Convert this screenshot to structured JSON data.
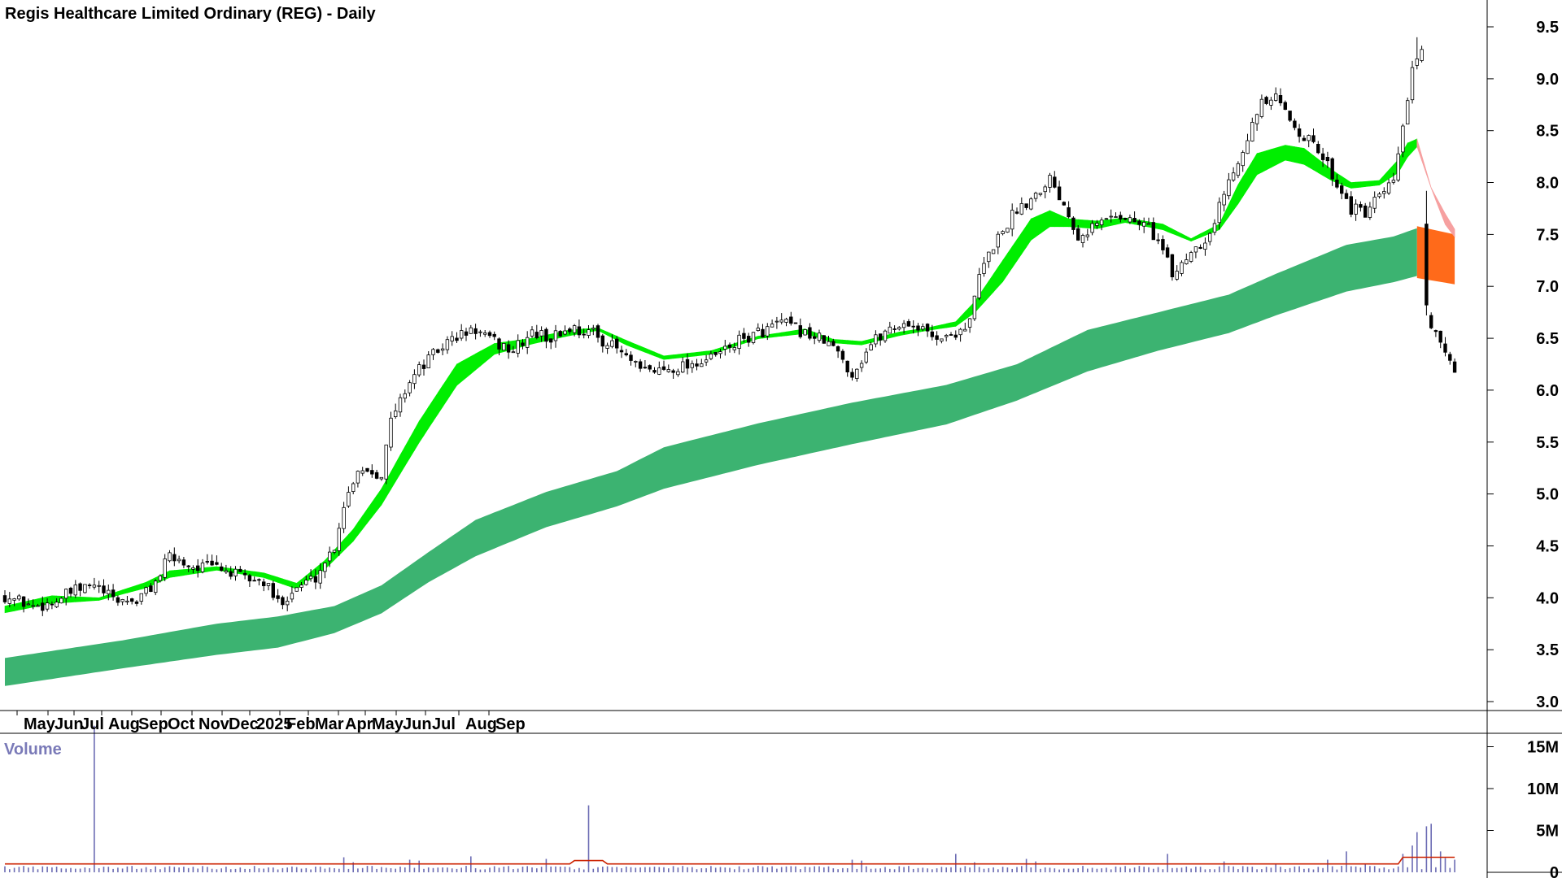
{
  "chart_data": [
    {
      "type": "candlestick",
      "title": "Regis Healthcare Limited Ordinary (REG) - Daily",
      "ylim": [
        2.9,
        9.6
      ],
      "y_ticks": [
        3.0,
        3.5,
        4.0,
        4.5,
        5.0,
        5.5,
        6.0,
        6.5,
        7.0,
        7.5,
        8.0,
        8.5,
        9.0,
        9.5
      ],
      "y_tick_labels": [
        "3.0",
        "3.5",
        "4.0",
        "4.5",
        "5.0",
        "5.5",
        "6.0",
        "6.5",
        "7.0",
        "7.5",
        "8.0",
        "8.5",
        "9.0",
        "9.5"
      ],
      "x_tick_labels": [
        "May",
        "Jun",
        "Jul",
        "Aug",
        "Sep",
        "Oct",
        "Nov",
        "Dec",
        "2025",
        "Feb",
        "Mar",
        "Apr",
        "May",
        "Jun",
        "Jul",
        "Aug",
        "Sep"
      ],
      "grid": false,
      "legend": "none",
      "anchors": [
        [
          0,
          4.02
        ],
        [
          6,
          3.92
        ],
        [
          10,
          3.95
        ],
        [
          14,
          4.05
        ],
        [
          19,
          4.12
        ],
        [
          23,
          3.98
        ],
        [
          28,
          3.97
        ],
        [
          32,
          4.15
        ],
        [
          35,
          4.4
        ],
        [
          40,
          4.3
        ],
        [
          45,
          4.3
        ],
        [
          50,
          4.2
        ],
        [
          55,
          4.15
        ],
        [
          58,
          3.95
        ],
        [
          62,
          4.1
        ],
        [
          66,
          4.2
        ],
        [
          70,
          4.5
        ],
        [
          72,
          4.9
        ],
        [
          75,
          5.25
        ],
        [
          80,
          5.2
        ],
        [
          82,
          5.7
        ],
        [
          86,
          6.1
        ],
        [
          90,
          6.3
        ],
        [
          95,
          6.5
        ],
        [
          100,
          6.58
        ],
        [
          103,
          6.48
        ],
        [
          108,
          6.38
        ],
        [
          112,
          6.55
        ],
        [
          116,
          6.5
        ],
        [
          120,
          6.6
        ],
        [
          125,
          6.55
        ],
        [
          128,
          6.45
        ],
        [
          130,
          6.4
        ],
        [
          135,
          6.18
        ],
        [
          140,
          6.2
        ],
        [
          145,
          6.25
        ],
        [
          150,
          6.3
        ],
        [
          155,
          6.45
        ],
        [
          160,
          6.55
        ],
        [
          165,
          6.65
        ],
        [
          170,
          6.55
        ],
        [
          175,
          6.45
        ],
        [
          178,
          6.3
        ],
        [
          180,
          6.15
        ],
        [
          184,
          6.45
        ],
        [
          188,
          6.6
        ],
        [
          192,
          6.65
        ],
        [
          196,
          6.55
        ],
        [
          200,
          6.5
        ],
        [
          205,
          6.65
        ],
        [
          207,
          7.1
        ],
        [
          210,
          7.4
        ],
        [
          215,
          7.75
        ],
        [
          218,
          7.85
        ],
        [
          222,
          8.05
        ],
        [
          225,
          7.8
        ],
        [
          228,
          7.5
        ],
        [
          232,
          7.6
        ],
        [
          236,
          7.7
        ],
        [
          240,
          7.62
        ],
        [
          243,
          7.58
        ],
        [
          246,
          7.35
        ],
        [
          248,
          7.1
        ],
        [
          252,
          7.35
        ],
        [
          256,
          7.5
        ],
        [
          259,
          7.9
        ],
        [
          263,
          8.35
        ],
        [
          267,
          8.75
        ],
        [
          270,
          8.8
        ],
        [
          274,
          8.55
        ],
        [
          277,
          8.4
        ],
        [
          280,
          8.25
        ],
        [
          283,
          8.0
        ],
        [
          286,
          7.75
        ],
        [
          289,
          7.7
        ],
        [
          292,
          7.85
        ],
        [
          294,
          7.95
        ],
        [
          295,
          8.0
        ],
        [
          297,
          8.55
        ],
        [
          299,
          9.05
        ],
        [
          300,
          9.15
        ],
        [
          301,
          9.25
        ],
        [
          302,
          7.6
        ],
        [
          303,
          6.7
        ],
        [
          304,
          6.62
        ],
        [
          305,
          6.48
        ],
        [
          306,
          6.4
        ],
        [
          307,
          6.25
        ],
        [
          308,
          6.12
        ]
      ],
      "band_long": [
        [
          0,
          3.15,
          3.42
        ],
        [
          25,
          3.32,
          3.59
        ],
        [
          45,
          3.45,
          3.75
        ],
        [
          58,
          3.52,
          3.82
        ],
        [
          70,
          3.66,
          3.92
        ],
        [
          80,
          3.85,
          4.12
        ],
        [
          90,
          4.15,
          4.44
        ],
        [
          100,
          4.4,
          4.75
        ],
        [
          115,
          4.68,
          5.02
        ],
        [
          130,
          4.88,
          5.22
        ],
        [
          140,
          5.05,
          5.45
        ],
        [
          160,
          5.28,
          5.68
        ],
        [
          180,
          5.48,
          5.88
        ],
        [
          200,
          5.67,
          6.05
        ],
        [
          215,
          5.9,
          6.25
        ],
        [
          230,
          6.18,
          6.58
        ],
        [
          245,
          6.38,
          6.75
        ],
        [
          260,
          6.55,
          6.92
        ],
        [
          270,
          6.72,
          7.12
        ],
        [
          285,
          6.95,
          7.4
        ],
        [
          295,
          7.04,
          7.48
        ],
        [
          300,
          7.1,
          7.56
        ]
      ],
      "band_short": [
        [
          0,
          3.86,
          3.92
        ],
        [
          10,
          3.95,
          4.02
        ],
        [
          20,
          3.98,
          4.0
        ],
        [
          30,
          4.1,
          4.15
        ],
        [
          35,
          4.2,
          4.26
        ],
        [
          45,
          4.27,
          4.3
        ],
        [
          55,
          4.2,
          4.24
        ],
        [
          62,
          4.09,
          4.14
        ],
        [
          68,
          4.28,
          4.36
        ],
        [
          74,
          4.55,
          4.66
        ],
        [
          80,
          4.9,
          5.05
        ],
        [
          88,
          5.5,
          5.7
        ],
        [
          96,
          6.05,
          6.25
        ],
        [
          104,
          6.35,
          6.45
        ],
        [
          112,
          6.45,
          6.5
        ],
        [
          120,
          6.53,
          6.58
        ],
        [
          126,
          6.58,
          6.6
        ],
        [
          132,
          6.44,
          6.48
        ],
        [
          140,
          6.3,
          6.33
        ],
        [
          150,
          6.35,
          6.38
        ],
        [
          160,
          6.5,
          6.52
        ],
        [
          170,
          6.55,
          6.59
        ],
        [
          176,
          6.46,
          6.49
        ],
        [
          182,
          6.44,
          6.47
        ],
        [
          190,
          6.53,
          6.56
        ],
        [
          196,
          6.58,
          6.6
        ],
        [
          202,
          6.62,
          6.66
        ],
        [
          206,
          6.75,
          6.85
        ],
        [
          212,
          7.05,
          7.25
        ],
        [
          218,
          7.45,
          7.65
        ],
        [
          222,
          7.58,
          7.73
        ],
        [
          226,
          7.58,
          7.65
        ],
        [
          232,
          7.56,
          7.63
        ],
        [
          238,
          7.62,
          7.66
        ],
        [
          246,
          7.55,
          7.6
        ],
        [
          252,
          7.44,
          7.46
        ],
        [
          258,
          7.55,
          7.6
        ],
        [
          262,
          7.8,
          7.98
        ],
        [
          266,
          8.08,
          8.28
        ],
        [
          272,
          8.22,
          8.36
        ],
        [
          276,
          8.18,
          8.33
        ],
        [
          282,
          8.02,
          8.12
        ],
        [
          286,
          7.95,
          8.0
        ],
        [
          292,
          7.98,
          8.02
        ],
        [
          296,
          8.1,
          8.22
        ],
        [
          298,
          8.25,
          8.38
        ],
        [
          300,
          8.35,
          8.42
        ],
        [
          303,
          7.95,
          7.95
        ],
        [
          306,
          7.7,
          7.6
        ],
        [
          308,
          7.55,
          7.48
        ]
      ],
      "candle_extra_days": [
        302,
        303
      ],
      "gapped_days": [
        303
      ],
      "hollow_color": "#ffffff",
      "candle_color": "#000000",
      "long_band_color": "#3cb371",
      "short_band_up_color": "#00ee00",
      "short_band_down_color": "#ff6a1a",
      "short_band_fade_color": "#f6a0a0",
      "long_band_down_color": "#ff6a1a"
    },
    {
      "type": "bar",
      "title": "Volume",
      "y_ticks": [
        0,
        5,
        10,
        15
      ],
      "y_tick_labels": [
        "0",
        "5M",
        "10M",
        "15M"
      ],
      "ylim_millions": [
        0,
        18
      ],
      "base_volume_millions": 0.55,
      "spikes": [
        [
          19,
          17.5
        ],
        [
          72,
          1.8
        ],
        [
          74,
          1.2
        ],
        [
          86,
          1.5
        ],
        [
          88,
          1.4
        ],
        [
          99,
          1.9
        ],
        [
          115,
          1.6
        ],
        [
          124,
          8.0
        ],
        [
          180,
          1.5
        ],
        [
          182,
          1.4
        ],
        [
          202,
          2.2
        ],
        [
          206,
          1.2
        ],
        [
          217,
          1.6
        ],
        [
          219,
          1.3
        ],
        [
          247,
          2.2
        ],
        [
          259,
          1.3
        ],
        [
          270,
          1.0
        ],
        [
          281,
          1.5
        ],
        [
          285,
          2.5
        ],
        [
          289,
          1.0
        ],
        [
          297,
          2.2
        ],
        [
          299,
          3.2
        ],
        [
          300,
          4.8
        ],
        [
          302,
          5.5
        ],
        [
          303,
          5.8
        ],
        [
          305,
          2.5
        ],
        [
          306,
          1.7
        ],
        [
          308,
          1.5
        ]
      ],
      "bar_color": "#6b6bb3",
      "average_color": "#cc2200"
    }
  ]
}
